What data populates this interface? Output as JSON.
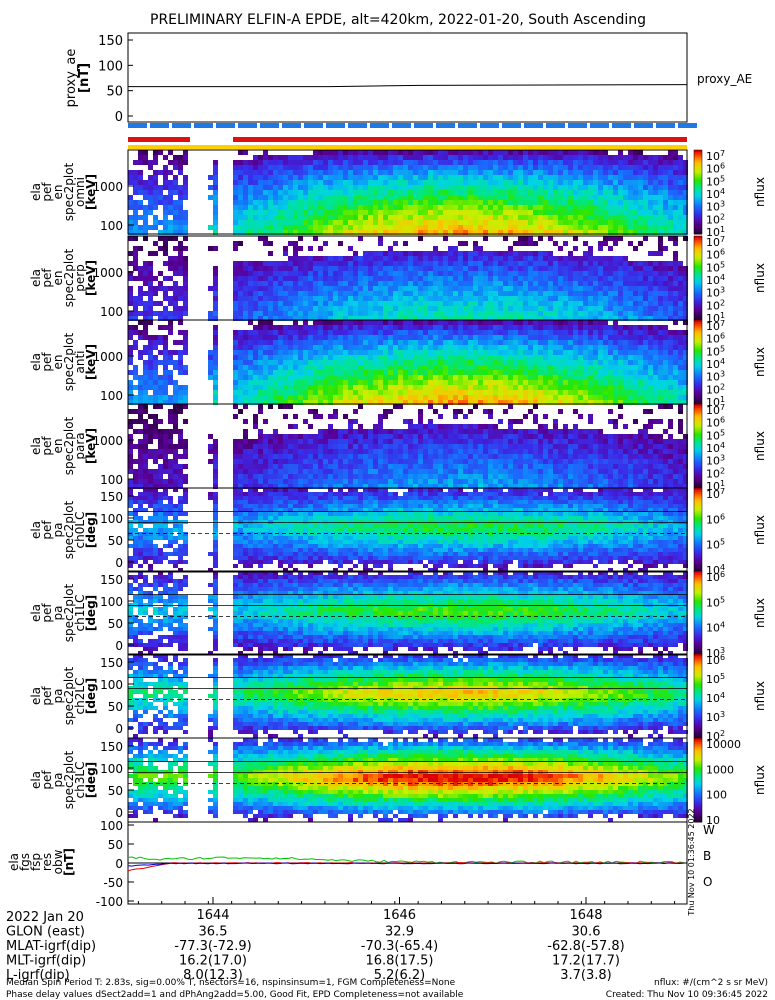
{
  "title": "PRELIMINARY ELFIN-A EPDE, alt=420km, 2022-01-20, South Ascending",
  "proxy_panel": {
    "ylabel_lines": [
      "proxy_ae",
      "[nT]"
    ],
    "yticks": [
      "150",
      "100",
      "50",
      "0"
    ],
    "legend": "proxy_AE",
    "series_values_start": 58,
    "series_values_end": 62
  },
  "panels": [
    {
      "ylabel_lines": [
        "ela",
        "pef",
        "en",
        "spec2plot",
        "omni",
        "[keV]"
      ],
      "yticks": [
        "1000",
        "100"
      ],
      "cbar_ticks": [
        "10^7",
        "10^6",
        "10^5",
        "10^4",
        "10^3",
        "10^2",
        "10^1"
      ],
      "cbar_label": "nflux",
      "kind": "energy",
      "intensity": 1.0
    },
    {
      "ylabel_lines": [
        "ela",
        "pef",
        "en",
        "spec2plot",
        "perp",
        "[keV]"
      ],
      "yticks": [
        "1000",
        "100"
      ],
      "cbar_ticks": [
        "10^7",
        "10^6",
        "10^5",
        "10^4",
        "10^3",
        "10^2",
        "10^1"
      ],
      "cbar_label": "nflux",
      "kind": "energy",
      "intensity": 0.6
    },
    {
      "ylabel_lines": [
        "ela",
        "pef",
        "en",
        "spec2plot",
        "anti",
        "[keV]"
      ],
      "yticks": [
        "1000",
        "100"
      ],
      "cbar_ticks": [
        "10^7",
        "10^6",
        "10^5",
        "10^4",
        "10^3",
        "10^2",
        "10^1"
      ],
      "cbar_label": "nflux",
      "kind": "energy",
      "intensity": 1.0
    },
    {
      "ylabel_lines": [
        "ela",
        "pef",
        "en",
        "spec2plot",
        "para",
        "[keV]"
      ],
      "yticks": [
        "1000",
        "100"
      ],
      "cbar_ticks": [
        "10^7",
        "10^6",
        "10^5",
        "10^4",
        "10^3",
        "10^2",
        "10^1"
      ],
      "cbar_label": "nflux",
      "kind": "energy",
      "intensity": 0.45
    },
    {
      "ylabel_lines": [
        "ela",
        "pef",
        "pa",
        "spec2plot",
        "ch0LC",
        "[deg]"
      ],
      "yticks": [
        "150",
        "100",
        "50",
        "0"
      ],
      "cbar_ticks": [
        "10^7",
        "10^6",
        "10^5",
        "10^4"
      ],
      "cbar_label": "nflux",
      "kind": "pa",
      "intensity": 0.55
    },
    {
      "ylabel_lines": [
        "ela",
        "pef",
        "pa",
        "spec2plot",
        "ch1LC",
        "[deg]"
      ],
      "yticks": [
        "150",
        "100",
        "50",
        "0"
      ],
      "cbar_ticks": [
        "10^6",
        "10^5",
        "10^4",
        "10^3"
      ],
      "cbar_label": "nflux",
      "kind": "pa",
      "intensity": 0.6
    },
    {
      "ylabel_lines": [
        "ela",
        "pef",
        "pa",
        "spec2plot",
        "ch2LC",
        "[deg]"
      ],
      "yticks": [
        "150",
        "100",
        "50",
        "0"
      ],
      "cbar_ticks": [
        "10^6",
        "10^5",
        "10^4",
        "10^3",
        "10^2"
      ],
      "cbar_label": "nflux",
      "kind": "pa",
      "intensity": 0.8
    },
    {
      "ylabel_lines": [
        "ela",
        "pef",
        "pa",
        "spec2plot",
        "ch3LC",
        "[deg]"
      ],
      "yticks": [
        "150",
        "100",
        "50",
        "0"
      ],
      "cbar_ticks": [
        "10000",
        "1000",
        "100",
        "10"
      ],
      "cbar_label": "nflux",
      "kind": "pa",
      "intensity": 1.0
    }
  ],
  "fgs_panel": {
    "ylabel_lines": [
      "ela",
      "fgs",
      "fsp",
      "res",
      "obw",
      "[nT]"
    ],
    "yticks": [
      "100",
      "50",
      "0",
      "-50",
      "-100"
    ],
    "legend": [
      {
        "label": "W",
        "color": "#e00000"
      },
      {
        "label": "B",
        "color": "#00b000"
      },
      {
        "label": "O",
        "color": "#0000e0"
      }
    ]
  },
  "side_stamp": "Thu Nov 10 01:36:45 2022",
  "x_axis": {
    "ticks": [
      "1644",
      "1646",
      "1648"
    ],
    "rows": [
      {
        "label": "2022 Jan 20",
        "values": [
          "",
          "",
          ""
        ]
      },
      {
        "label": "GLON (east)",
        "values": [
          "36.5",
          "32.9",
          "30.6"
        ]
      },
      {
        "label": "MLAT-igrf(dip)",
        "values": [
          "-77.3(-72.9)",
          "-70.3(-65.4)",
          "-62.8(-57.8)"
        ]
      },
      {
        "label": "MLT-igrf(dip)",
        "values": [
          "16.2(17.0)",
          "16.8(17.5)",
          "17.2(17.7)"
        ]
      },
      {
        "label": "L-igrf(dip)",
        "values": [
          "8.0(12.3)",
          "5.2(6.2)",
          "3.7(3.8)"
        ]
      }
    ]
  },
  "footer": {
    "left_line1": "Median Spin Period T: 2.83s, sig=0.00% T, nsectors=16, nspinsinsum=1, FGM Completeness=None",
    "left_line2": "Phase delay values dSect2add=1 and dPhAng2add=5.00, Good Fit, EPD Completeness=not available",
    "right_line1": "nflux: #/(cm^2 s sr MeV)",
    "right_line2": "Created: Thu Nov 10 09:36:45 2022"
  },
  "colors": {
    "bar_blue": "#1e78e6",
    "bar_red": "#e01010",
    "bar_yellow": "#ffd000"
  }
}
